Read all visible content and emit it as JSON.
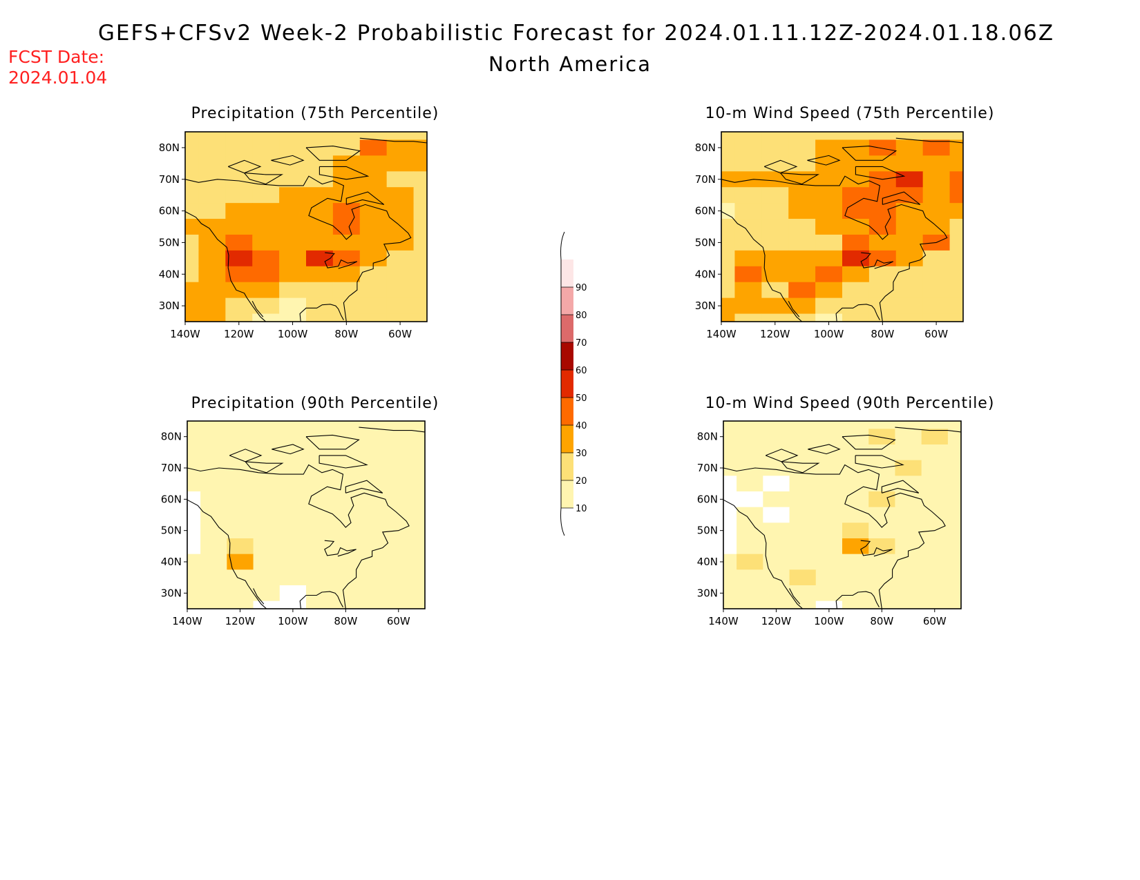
{
  "title_line1": "GEFS+CFSv2 Week-2 Probabilistic Forecast for 2024.01.11.12Z-2024.01.18.06Z",
  "title_line2": "North America",
  "fcst_label": "FCST Date:",
  "fcst_date": "2024.01.04",
  "lon_ticks": [
    "140W",
    "120W",
    "100W",
    "80W",
    "60W"
  ],
  "lat_ticks": [
    "30N",
    "40N",
    "50N",
    "60N",
    "70N",
    "80N"
  ],
  "panels": [
    {
      "title": "Precipitation (75th Percentile)",
      "key": "precip75"
    },
    {
      "title": "10-m Wind Speed (75th Percentile)",
      "key": "wind75"
    },
    {
      "title": "Precipitation (90th Percentile)",
      "key": "precip90"
    },
    {
      "title": "10-m Wind Speed (90th Percentile)",
      "key": "wind90"
    }
  ],
  "colorbar": {
    "labels": [
      "10",
      "20",
      "30",
      "40",
      "50",
      "60",
      "70",
      "80",
      "90"
    ],
    "colors": [
      "#fff5b0",
      "#fde077",
      "#fea400",
      "#fe6a00",
      "#e22a00",
      "#a80800",
      "#dc6a6a",
      "#f4a8a8",
      "#fde6e6"
    ]
  },
  "chart_data": {
    "type": "heatmap",
    "units": "probability (%)",
    "domain": {
      "lon_range": [
        "140W",
        "50W"
      ],
      "lat_range": [
        "25N",
        "85N"
      ]
    },
    "levels": [
      10,
      20,
      30,
      40,
      50,
      60,
      70,
      80,
      90
    ],
    "grid_lons": [
      -140,
      -130,
      -120,
      -110,
      -100,
      -90,
      -80,
      -70,
      -60,
      -50
    ],
    "grid_lats": [
      85,
      80,
      75,
      70,
      65,
      60,
      55,
      50,
      45,
      40,
      35,
      30,
      25
    ],
    "fields": {
      "precip75": [
        [
          20,
          20,
          20,
          20,
          20,
          20,
          20,
          25,
          25,
          20
        ],
        [
          20,
          20,
          20,
          20,
          25,
          25,
          25,
          45,
          30,
          35
        ],
        [
          20,
          20,
          20,
          20,
          20,
          25,
          30,
          35,
          30,
          30
        ],
        [
          20,
          20,
          20,
          20,
          20,
          25,
          35,
          30,
          25,
          25
        ],
        [
          20,
          25,
          25,
          25,
          30,
          35,
          35,
          35,
          30,
          25
        ],
        [
          25,
          25,
          30,
          35,
          35,
          30,
          45,
          35,
          35,
          25
        ],
        [
          30,
          35,
          35,
          35,
          30,
          30,
          40,
          35,
          30,
          25
        ],
        [
          25,
          35,
          40,
          35,
          35,
          35,
          35,
          35,
          30,
          25
        ],
        [
          20,
          35,
          55,
          40,
          35,
          50,
          40,
          30,
          25,
          20
        ],
        [
          25,
          35,
          40,
          45,
          30,
          35,
          30,
          25,
          20,
          20
        ],
        [
          30,
          35,
          30,
          35,
          25,
          20,
          20,
          25,
          20,
          20
        ],
        [
          35,
          35,
          25,
          25,
          15,
          20,
          20,
          20,
          20,
          20
        ],
        [
          35,
          30,
          20,
          15,
          10,
          20,
          25,
          20,
          20,
          20
        ]
      ],
      "wind75": [
        [
          25,
          25,
          25,
          25,
          25,
          25,
          25,
          25,
          25,
          25
        ],
        [
          20,
          20,
          25,
          25,
          30,
          35,
          45,
          35,
          45,
          30
        ],
        [
          20,
          20,
          25,
          25,
          30,
          35,
          35,
          35,
          30,
          30
        ],
        [
          35,
          30,
          30,
          30,
          30,
          35,
          45,
          50,
          35,
          40
        ],
        [
          20,
          25,
          25,
          30,
          35,
          40,
          45,
          40,
          35,
          40
        ],
        [
          15,
          20,
          20,
          30,
          35,
          40,
          45,
          35,
          35,
          30
        ],
        [
          20,
          20,
          20,
          25,
          30,
          35,
          45,
          35,
          30,
          25
        ],
        [
          20,
          25,
          20,
          20,
          25,
          45,
          30,
          30,
          40,
          25
        ],
        [
          20,
          35,
          30,
          30,
          30,
          50,
          45,
          30,
          25,
          20
        ],
        [
          25,
          45,
          35,
          30,
          40,
          30,
          25,
          25,
          20,
          20
        ],
        [
          25,
          35,
          25,
          45,
          30,
          25,
          20,
          25,
          20,
          20
        ],
        [
          30,
          30,
          35,
          30,
          20,
          25,
          20,
          20,
          20,
          20
        ],
        [
          30,
          25,
          25,
          20,
          15,
          25,
          25,
          20,
          20,
          20
        ]
      ],
      "precip90": [
        [
          15,
          10,
          10,
          15,
          15,
          15,
          15,
          15,
          15,
          15
        ],
        [
          15,
          10,
          10,
          15,
          15,
          15,
          15,
          15,
          15,
          15
        ],
        [
          10,
          10,
          10,
          10,
          10,
          15,
          15,
          15,
          15,
          15
        ],
        [
          10,
          10,
          10,
          10,
          10,
          15,
          15,
          15,
          15,
          15
        ],
        [
          10,
          10,
          10,
          10,
          15,
          15,
          15,
          15,
          15,
          15
        ],
        [
          5,
          10,
          10,
          15,
          15,
          15,
          15,
          15,
          15,
          15
        ],
        [
          5,
          10,
          10,
          15,
          15,
          15,
          15,
          15,
          15,
          15
        ],
        [
          5,
          15,
          15,
          15,
          15,
          15,
          15,
          15,
          15,
          15
        ],
        [
          5,
          10,
          25,
          15,
          15,
          15,
          15,
          15,
          15,
          15
        ],
        [
          10,
          10,
          30,
          15,
          10,
          15,
          15,
          15,
          15,
          10
        ],
        [
          10,
          15,
          10,
          15,
          10,
          10,
          10,
          15,
          15,
          10
        ],
        [
          15,
          15,
          10,
          10,
          5,
          10,
          15,
          15,
          10,
          10
        ],
        [
          15,
          10,
          10,
          5,
          5,
          10,
          15,
          10,
          10,
          10
        ]
      ],
      "wind90": [
        [
          15,
          15,
          15,
          15,
          15,
          15,
          15,
          15,
          15,
          15
        ],
        [
          15,
          10,
          15,
          15,
          15,
          15,
          25,
          15,
          25,
          15
        ],
        [
          10,
          10,
          10,
          15,
          15,
          15,
          15,
          15,
          15,
          15
        ],
        [
          15,
          10,
          10,
          10,
          10,
          15,
          15,
          25,
          15,
          15
        ],
        [
          5,
          10,
          5,
          10,
          10,
          15,
          15,
          15,
          15,
          15
        ],
        [
          5,
          5,
          10,
          10,
          15,
          15,
          25,
          15,
          15,
          15
        ],
        [
          5,
          10,
          5,
          10,
          15,
          15,
          15,
          15,
          15,
          15
        ],
        [
          5,
          10,
          10,
          10,
          10,
          25,
          15,
          15,
          15,
          15
        ],
        [
          5,
          15,
          10,
          10,
          15,
          30,
          25,
          10,
          10,
          10
        ],
        [
          10,
          25,
          15,
          15,
          15,
          15,
          10,
          10,
          10,
          10
        ],
        [
          10,
          15,
          10,
          25,
          15,
          10,
          10,
          10,
          10,
          10
        ],
        [
          15,
          15,
          15,
          15,
          10,
          10,
          10,
          10,
          10,
          10
        ],
        [
          15,
          10,
          10,
          10,
          5,
          10,
          10,
          10,
          10,
          10
        ]
      ]
    }
  }
}
